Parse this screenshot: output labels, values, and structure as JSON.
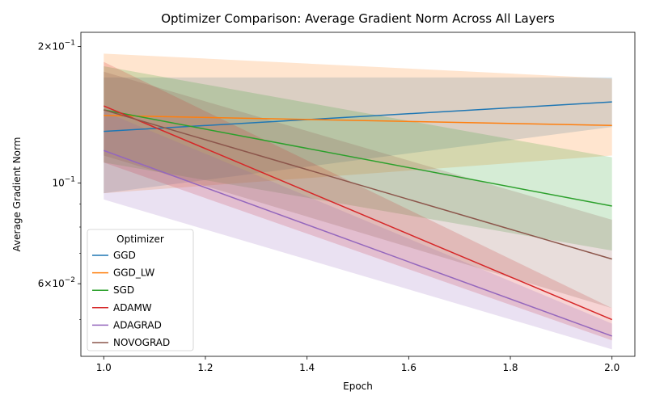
{
  "chart_data": {
    "type": "line",
    "title": "Optimizer Comparison: Average Gradient Norm Across All Layers",
    "xlabel": "Epoch",
    "ylabel": "Average Gradient Norm",
    "x": [
      1.0,
      2.0
    ],
    "xlim": [
      0.955,
      2.045
    ],
    "ylim": [
      0.0415,
      0.215
    ],
    "yscale": "log",
    "x_ticks": [
      1.0,
      1.2,
      1.4,
      1.6,
      1.8,
      2.0
    ],
    "x_tick_labels": [
      "1.0",
      "1.2",
      "1.4",
      "1.6",
      "1.8",
      "2.0"
    ],
    "y_major_ticks": [
      {
        "value": 0.1,
        "base": "10",
        "exp": "−1",
        "mult": ""
      },
      {
        "value": 0.2,
        "base": "10",
        "exp": "−1",
        "mult": "2×"
      },
      {
        "value": 0.06,
        "base": "10",
        "exp": "−2",
        "mult": "6×"
      }
    ],
    "y_minor_ticks": [
      0.05,
      0.07,
      0.08,
      0.09,
      0.2
    ],
    "legend": {
      "title": "Optimizer",
      "position": "lower-left"
    },
    "series": [
      {
        "name": "GGD",
        "color": "#1f77b4",
        "values": [
          0.13,
          0.151
        ],
        "lower": [
          0.095,
          0.133
        ],
        "upper": [
          0.171,
          0.171
        ]
      },
      {
        "name": "GGD_LW",
        "color": "#ff7f0e",
        "values": [
          0.141,
          0.134
        ],
        "lower": [
          0.095,
          0.115
        ],
        "upper": [
          0.193,
          0.17
        ]
      },
      {
        "name": "SGD",
        "color": "#2ca02c",
        "values": [
          0.145,
          0.089
        ],
        "lower": [
          0.111,
          0.071
        ],
        "upper": [
          0.181,
          0.114
        ]
      },
      {
        "name": "ADAMW",
        "color": "#d62728",
        "values": [
          0.148,
          0.05
        ],
        "lower": [
          0.111,
          0.045
        ],
        "upper": [
          0.185,
          0.053
        ]
      },
      {
        "name": "ADAGRAD",
        "color": "#9467bd",
        "values": [
          0.118,
          0.046
        ],
        "lower": [
          0.092,
          0.043
        ],
        "upper": [
          0.144,
          0.049
        ]
      },
      {
        "name": "NOVOGRAD",
        "color": "#8c564b",
        "values": [
          0.145,
          0.068
        ],
        "lower": [
          0.115,
          0.053
        ],
        "upper": [
          0.176,
          0.083
        ]
      }
    ]
  }
}
